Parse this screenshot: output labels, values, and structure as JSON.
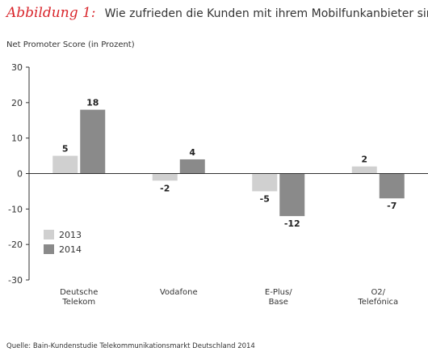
{
  "title": {
    "figure_label": "Abbildung 1:",
    "text": "Wie zufrieden die Kunden mit ihrem Mobilfunkanbieter sind"
  },
  "source": "Quelle: Bain-Kundenstudie Telekommunikationsmarkt Deutschland 2014",
  "colors": {
    "series_2013": "#d0d0d0",
    "series_2014": "#8a8a8a",
    "axis": "#333333"
  },
  "chart_data": {
    "type": "bar",
    "ylabel": "Net Promoter Score (in Prozent)",
    "ylim": [
      -30,
      30
    ],
    "yticks": [
      30,
      20,
      10,
      0,
      -10,
      -20,
      -30
    ],
    "categories": [
      [
        "Deutsche",
        "Telekom"
      ],
      [
        "Vodafone"
      ],
      [
        "E-Plus/",
        "Base"
      ],
      [
        "O2/",
        "Telefónica"
      ]
    ],
    "series": [
      {
        "name": "2013",
        "values": [
          5,
          -2,
          -5,
          2
        ]
      },
      {
        "name": "2014",
        "values": [
          18,
          4,
          -12,
          -7
        ]
      }
    ],
    "legend_position": "bottom-left"
  }
}
